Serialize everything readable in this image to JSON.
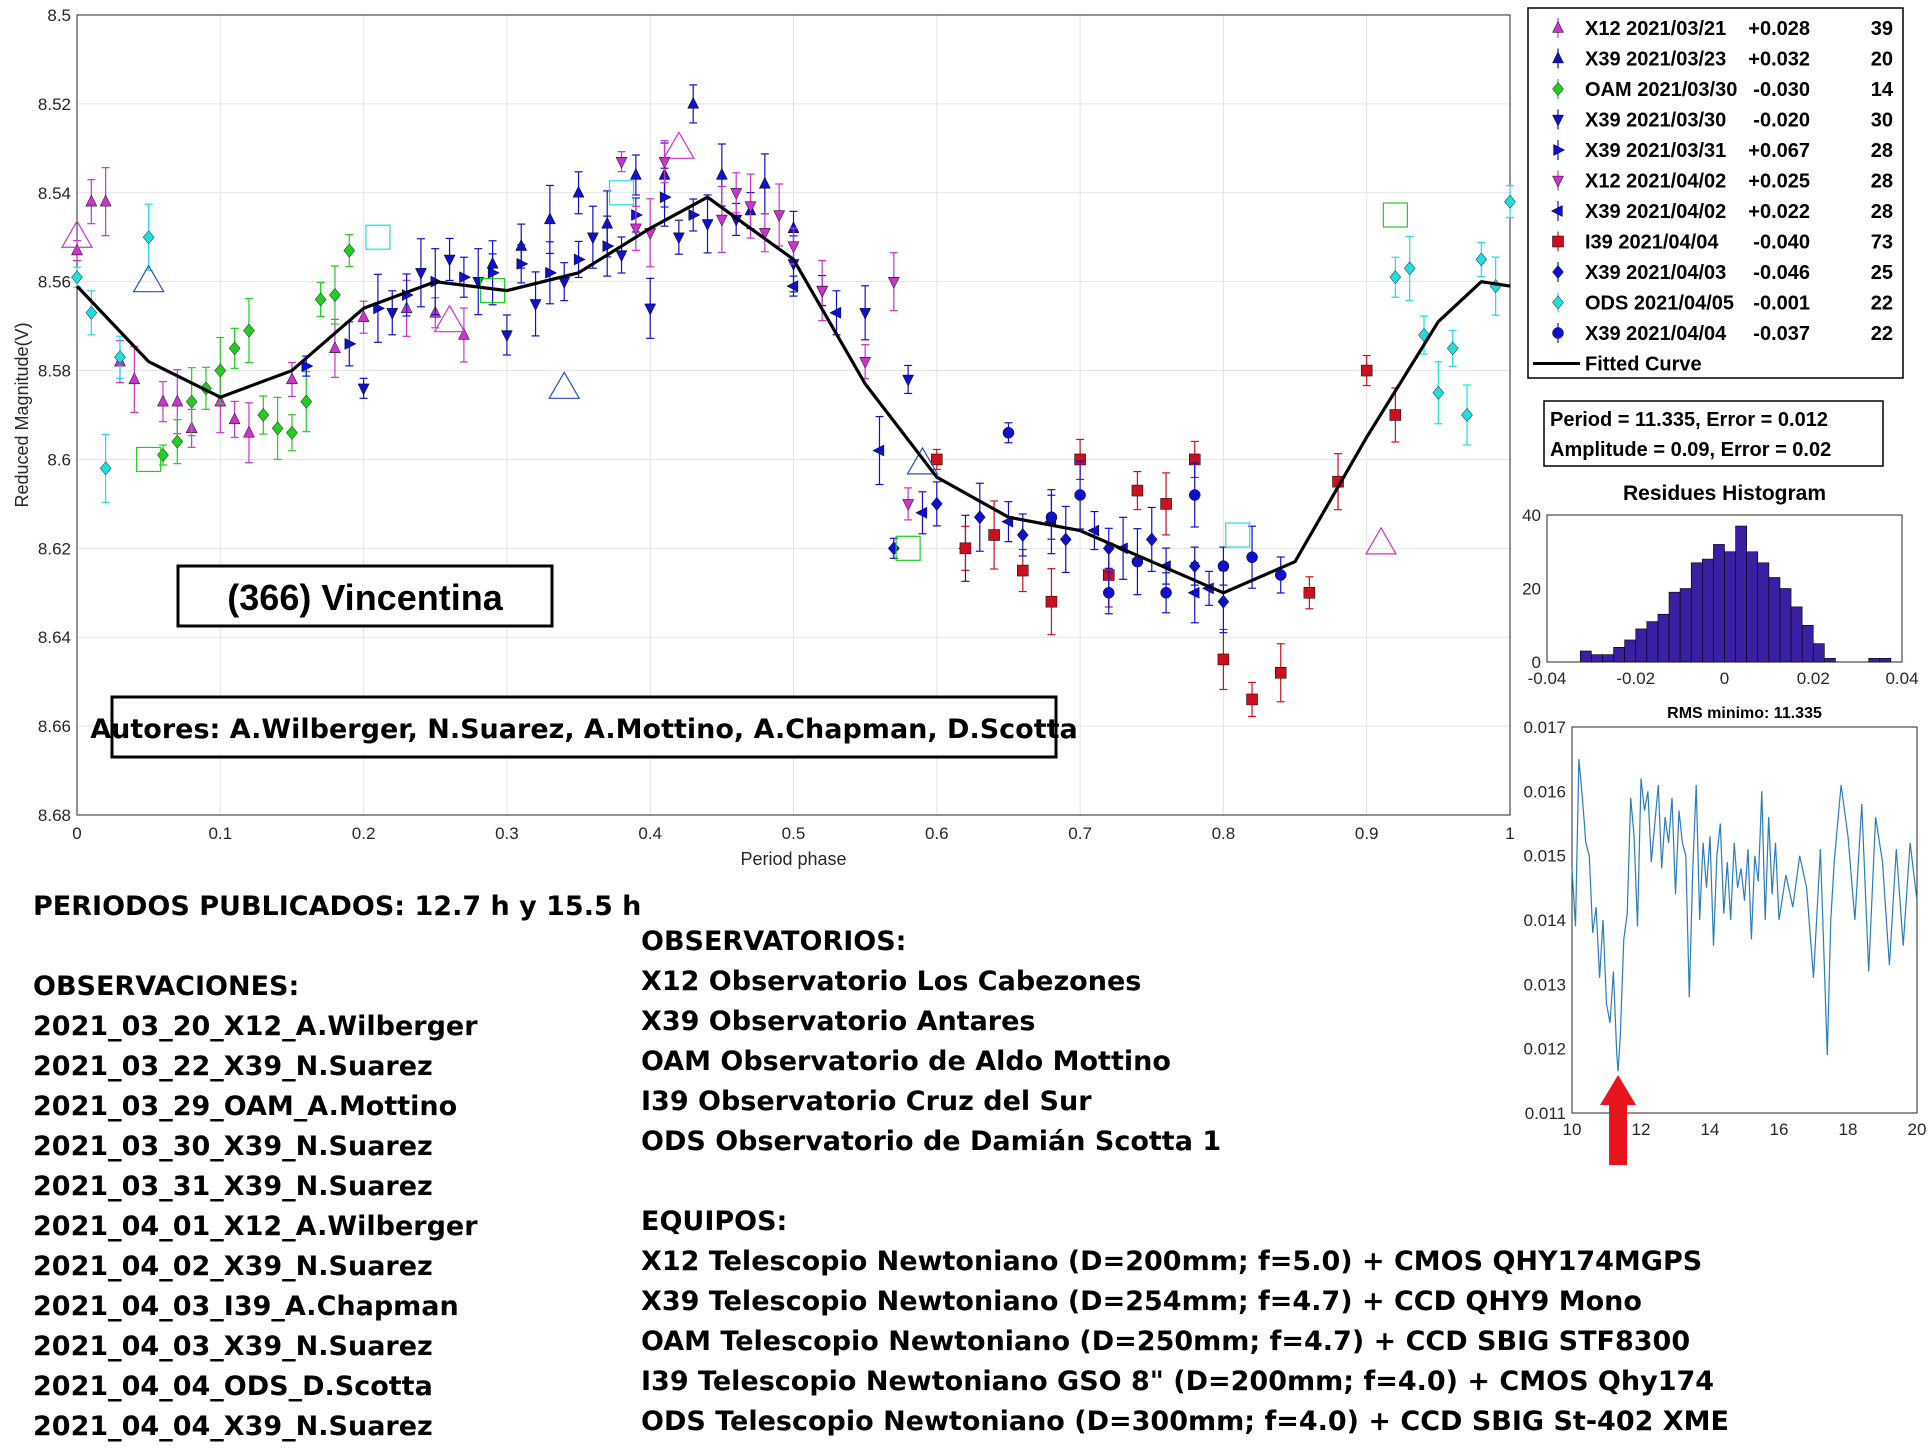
{
  "main_chart": {
    "type": "scatter",
    "title_box": "(366) Vincentina",
    "authors_box": "Autores: A.Wilberger, N.Suarez, A.Mottino, A.Chapman, D.Scotta",
    "xlabel": "Period phase",
    "ylabel": "Reduced Magnitude(V)",
    "xlim": [
      0,
      1
    ],
    "ylim": [
      8.5,
      8.68
    ],
    "y_reversed": true,
    "xticks": [
      "0",
      "0.1",
      "0.2",
      "0.3",
      "0.4",
      "0.5",
      "0.6",
      "0.7",
      "0.8",
      "0.9",
      "1"
    ],
    "yticks": [
      "8.5",
      "8.52",
      "8.54",
      "8.56",
      "8.58",
      "8.6",
      "8.62",
      "8.64",
      "8.66",
      "8.68"
    ],
    "fitted_curve": {
      "name": "Fitted Curve",
      "x": [
        0,
        0.05,
        0.1,
        0.15,
        0.2,
        0.25,
        0.3,
        0.35,
        0.4,
        0.44,
        0.5,
        0.55,
        0.6,
        0.65,
        0.7,
        0.75,
        0.8,
        0.85,
        0.9,
        0.95,
        0.98,
        1
      ],
      "y": [
        8.561,
        8.578,
        8.586,
        8.58,
        8.566,
        8.56,
        8.562,
        8.558,
        8.548,
        8.541,
        8.555,
        8.583,
        8.604,
        8.613,
        8.616,
        8.623,
        8.63,
        8.623,
        8.595,
        8.569,
        8.56,
        8.561
      ]
    },
    "series": [
      {
        "name": "X12 2021/03/21",
        "offset": "+0.028",
        "n": "39",
        "color": "#cc33cc",
        "marker": "triangle-up",
        "x": [
          0.0,
          0.01,
          0.02,
          0.03,
          0.04,
          0.06,
          0.07,
          0.08,
          0.1,
          0.11,
          0.12,
          0.15,
          0.18,
          0.2,
          0.23,
          0.25,
          0.27
        ],
        "y": [
          8.553,
          8.542,
          8.542,
          8.578,
          8.582,
          8.587,
          8.587,
          8.593,
          8.587,
          8.591,
          8.594,
          8.582,
          8.575,
          8.568,
          8.566,
          8.567,
          8.572
        ]
      },
      {
        "name": "X39 2021/03/23",
        "offset": "+0.032",
        "n": "20",
        "color": "#1010cc",
        "marker": "triangle-up",
        "x": [
          0.29,
          0.31,
          0.33,
          0.35,
          0.37,
          0.39,
          0.41,
          0.43,
          0.45,
          0.47,
          0.48,
          0.5
        ],
        "y": [
          8.556,
          8.552,
          8.546,
          8.54,
          8.547,
          8.536,
          8.536,
          8.52,
          8.536,
          8.544,
          8.538,
          8.548
        ]
      },
      {
        "name": "OAM 2021/03/30",
        "offset": "-0.030",
        "n": "14",
        "color": "#22cc22",
        "marker": "diamond",
        "x": [
          0.06,
          0.07,
          0.08,
          0.09,
          0.1,
          0.11,
          0.12,
          0.13,
          0.14,
          0.15,
          0.16,
          0.17,
          0.18,
          0.19
        ],
        "y": [
          8.599,
          8.596,
          8.587,
          8.584,
          8.58,
          8.575,
          8.571,
          8.59,
          8.593,
          8.594,
          8.587,
          8.564,
          8.563,
          8.553
        ]
      },
      {
        "name": "X39 2021/03/30",
        "offset": "-0.020",
        "n": "30",
        "color": "#1010cc",
        "marker": "triangle-down",
        "x": [
          0.2,
          0.22,
          0.24,
          0.26,
          0.28,
          0.3,
          0.32,
          0.34,
          0.36,
          0.38,
          0.4,
          0.42,
          0.44,
          0.46,
          0.5,
          0.52,
          0.55,
          0.58
        ],
        "y": [
          8.584,
          8.567,
          8.558,
          8.555,
          8.56,
          8.572,
          8.565,
          8.56,
          8.55,
          8.554,
          8.566,
          8.55,
          8.547,
          8.546,
          8.556,
          8.562,
          8.567,
          8.582
        ]
      },
      {
        "name": "X39 2021/03/31",
        "offset": "+0.067",
        "n": "28",
        "color": "#1010cc",
        "marker": "triangle-right",
        "x": [
          0.16,
          0.19,
          0.21,
          0.23,
          0.25,
          0.27,
          0.29,
          0.31,
          0.33,
          0.35,
          0.37,
          0.39,
          0.41,
          0.43
        ],
        "y": [
          8.579,
          8.574,
          8.566,
          8.563,
          8.56,
          8.559,
          8.558,
          8.556,
          8.558,
          8.555,
          8.552,
          8.545,
          8.541,
          8.545
        ]
      },
      {
        "name": "X12 2021/04/02",
        "offset": "+0.025",
        "n": "28",
        "color": "#cc33cc",
        "marker": "triangle-down",
        "x": [
          0.38,
          0.39,
          0.4,
          0.41,
          0.45,
          0.46,
          0.47,
          0.48,
          0.49,
          0.5,
          0.52,
          0.55,
          0.57,
          0.58
        ],
        "y": [
          8.533,
          8.548,
          8.549,
          8.533,
          8.546,
          8.54,
          8.543,
          8.549,
          8.545,
          8.552,
          8.562,
          8.578,
          8.56,
          8.61
        ]
      },
      {
        "name": "X39 2021/04/02",
        "offset": "+0.022",
        "n": "28",
        "color": "#1010cc",
        "marker": "triangle-left",
        "x": [
          0.5,
          0.53,
          0.56,
          0.59,
          0.62,
          0.65,
          0.68,
          0.71,
          0.73,
          0.76,
          0.78,
          0.79
        ],
        "y": [
          8.561,
          8.567,
          8.598,
          8.612,
          8.62,
          8.614,
          8.614,
          8.616,
          8.62,
          8.624,
          8.63,
          8.629
        ]
      },
      {
        "name": "I39 2021/04/04",
        "offset": "-0.040",
        "n": "73",
        "color": "#cc1020",
        "marker": "square",
        "x": [
          0.6,
          0.62,
          0.64,
          0.66,
          0.68,
          0.7,
          0.72,
          0.74,
          0.76,
          0.78,
          0.8,
          0.82,
          0.84,
          0.86,
          0.88,
          0.9,
          0.92
        ],
        "y": [
          8.6,
          8.62,
          8.617,
          8.625,
          8.632,
          8.6,
          8.626,
          8.607,
          8.61,
          8.6,
          8.645,
          8.654,
          8.648,
          8.63,
          8.605,
          8.58,
          8.59
        ]
      },
      {
        "name": "X39 2021/04/03",
        "offset": "-0.046",
        "n": "25",
        "color": "#1010cc",
        "marker": "diamond",
        "x": [
          0.57,
          0.6,
          0.63,
          0.66,
          0.69,
          0.72,
          0.75,
          0.78,
          0.8
        ],
        "y": [
          8.62,
          8.61,
          8.613,
          8.617,
          8.618,
          8.62,
          8.618,
          8.624,
          8.632
        ]
      },
      {
        "name": "ODS 2021/04/05",
        "offset": "-0.001",
        "n": "22",
        "color": "#22dddd",
        "marker": "diamond",
        "x": [
          0.0,
          0.01,
          0.02,
          0.03,
          0.05,
          0.92,
          0.93,
          0.94,
          0.95,
          0.96,
          0.97,
          0.98,
          0.99,
          1.0
        ],
        "y": [
          8.559,
          8.567,
          8.602,
          8.577,
          8.55,
          8.559,
          8.557,
          8.572,
          8.585,
          8.575,
          8.59,
          8.555,
          8.561,
          8.542
        ]
      },
      {
        "name": "X39 2021/04/04",
        "offset": "-0.037",
        "n": "22",
        "color": "#1010cc",
        "marker": "circle",
        "x": [
          0.65,
          0.68,
          0.7,
          0.72,
          0.74,
          0.76,
          0.78,
          0.8,
          0.82,
          0.84
        ],
        "y": [
          8.594,
          8.613,
          8.608,
          8.63,
          8.623,
          8.63,
          8.608,
          8.624,
          8.622,
          8.626
        ]
      }
    ],
    "outliers": {
      "name": "outlier markers",
      "x": [
        0.0,
        0.05,
        0.05,
        0.21,
        0.26,
        0.29,
        0.34,
        0.38,
        0.42,
        0.58,
        0.59,
        0.81,
        0.91,
        0.92
      ],
      "y": [
        8.55,
        8.6,
        8.56,
        8.55,
        8.569,
        8.562,
        8.584,
        8.54,
        8.53,
        8.62,
        8.601,
        8.617,
        8.619,
        8.545
      ]
    }
  },
  "legend": {
    "fitted_curve_label": "Fitted Curve"
  },
  "stats_box": {
    "line1": "Period =  11.335, Error = 0.012",
    "line2": "Amplitude = 0.09, Error = 0.02"
  },
  "histogram": {
    "type": "bar",
    "title": "Residues Histogram",
    "xlim": [
      -0.04,
      0.04
    ],
    "ylim": [
      0,
      40
    ],
    "xticks": [
      "-0.04",
      "-0.02",
      "0",
      "0.02",
      "0.04"
    ],
    "yticks": [
      "0",
      "20",
      "40"
    ],
    "bin_width": 0.0025,
    "bin_starts": [
      -0.0325,
      -0.03,
      -0.0275,
      -0.025,
      -0.0225,
      -0.02,
      -0.0175,
      -0.015,
      -0.0125,
      -0.01,
      -0.0075,
      -0.005,
      -0.0025,
      0,
      0.0025,
      0.005,
      0.0075,
      0.01,
      0.0125,
      0.015,
      0.0175,
      0.02,
      0.0225,
      0.025,
      0.0275,
      0.03,
      0.0325,
      0.035
    ],
    "values": [
      3,
      2,
      2,
      4,
      6,
      9,
      11,
      13,
      19,
      20,
      27,
      28,
      32,
      30,
      37,
      30,
      27,
      23,
      20,
      15,
      10,
      5,
      1,
      0,
      0,
      0,
      1,
      1
    ],
    "color": "#3a1fa3"
  },
  "rms_chart": {
    "type": "line",
    "title": "RMS minimo: 11.335",
    "xlim": [
      10,
      20
    ],
    "ylim": [
      0.011,
      0.017
    ],
    "xticks": [
      "10",
      "12",
      "14",
      "16",
      "18",
      "20"
    ],
    "yticks": [
      "0.011",
      "0.012",
      "0.013",
      "0.014",
      "0.015",
      "0.016",
      "0.017"
    ],
    "color": "#2a7db8",
    "x": [
      10.0,
      10.1,
      10.2,
      10.3,
      10.4,
      10.5,
      10.6,
      10.7,
      10.8,
      10.9,
      11.0,
      11.1,
      11.2,
      11.3,
      11.335,
      11.4,
      11.5,
      11.6,
      11.7,
      11.8,
      11.9,
      12.0,
      12.1,
      12.2,
      12.3,
      12.4,
      12.5,
      12.6,
      12.7,
      12.8,
      12.9,
      13.0,
      13.1,
      13.2,
      13.3,
      13.4,
      13.5,
      13.6,
      13.7,
      13.8,
      13.9,
      14.0,
      14.1,
      14.2,
      14.3,
      14.4,
      14.5,
      14.6,
      14.7,
      14.8,
      14.9,
      15.0,
      15.1,
      15.2,
      15.3,
      15.4,
      15.5,
      15.6,
      15.7,
      15.8,
      15.9,
      16.0,
      16.2,
      16.4,
      16.6,
      16.8,
      17.0,
      17.2,
      17.4,
      17.5,
      17.6,
      17.8,
      18.0,
      18.2,
      18.4,
      18.6,
      18.8,
      19.0,
      19.2,
      19.4,
      19.6,
      19.8,
      20.0
    ],
    "y": [
      0.0148,
      0.0139,
      0.0165,
      0.0159,
      0.0152,
      0.015,
      0.0138,
      0.0142,
      0.0131,
      0.014,
      0.0127,
      0.0124,
      0.0132,
      0.0119,
      0.01165,
      0.0122,
      0.0137,
      0.0141,
      0.0159,
      0.0153,
      0.0139,
      0.0162,
      0.0157,
      0.016,
      0.0149,
      0.0155,
      0.0161,
      0.0148,
      0.0156,
      0.0152,
      0.0159,
      0.0144,
      0.0157,
      0.0152,
      0.015,
      0.0128,
      0.0148,
      0.0161,
      0.014,
      0.0152,
      0.0145,
      0.0153,
      0.0136,
      0.015,
      0.0155,
      0.0141,
      0.0149,
      0.014,
      0.0152,
      0.0145,
      0.0148,
      0.0143,
      0.0151,
      0.0137,
      0.015,
      0.0146,
      0.016,
      0.014,
      0.0156,
      0.0144,
      0.0152,
      0.014,
      0.0147,
      0.0142,
      0.015,
      0.0145,
      0.0131,
      0.0151,
      0.0119,
      0.014,
      0.0149,
      0.0161,
      0.0153,
      0.014,
      0.0158,
      0.0132,
      0.0156,
      0.0149,
      0.0133,
      0.0151,
      0.0136,
      0.0152,
      0.0143
    ],
    "arrow_color": "#e8141c"
  },
  "published": "PERIODOS PUBLICADOS: 12.7 h y 15.5 h",
  "observaciones": {
    "heading": "OBSERVACIONES:",
    "items": [
      "2021_03_20_X12_A.Wilberger",
      "2021_03_22_X39_N.Suarez",
      "2021_03_29_OAM_A.Mottino",
      "2021_03_30_X39_N.Suarez",
      "2021_03_31_X39_N.Suarez",
      "2021_04_01_X12_A.Wilberger",
      "2021_04_02_X39_N.Suarez",
      "2021_04_03_I39_A.Chapman",
      "2021_04_03_X39_N.Suarez",
      "2021_04_04_ODS_D.Scotta",
      "2021_04_04_X39_N.Suarez"
    ]
  },
  "observatorios": {
    "heading": "OBSERVATORIOS:",
    "items": [
      "X12 Observatorio Los Cabezones",
      "X39 Observatorio Antares",
      "OAM Observatorio de Aldo Mottino",
      "I39 Observatorio Cruz del Sur",
      "ODS Observatorio de Damián Scotta 1"
    ]
  },
  "equipos": {
    "heading": "EQUIPOS:",
    "items": [
      "X12 Telescopio Newtoniano (D=200mm; f=5.0) + CMOS QHY174MGPS",
      "X39 Telescopio Newtoniano (D=254mm; f=4.7) + CCD QHY9 Mono",
      "OAM Telescopio Newtoniano (D=250mm; f=4.7) + CCD SBIG STF8300",
      "I39 Telescopio Newtoniano GSO 8\" (D=200mm; f=4.0) + CMOS Qhy174",
      "ODS Telescopio Newtoniano (D=300mm; f=4.0) + CCD SBIG St-402 XME"
    ]
  }
}
